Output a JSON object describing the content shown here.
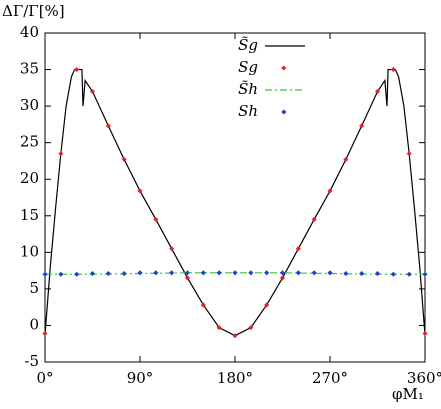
{
  "chart_data": {
    "type": "line",
    "ylabel": "ΔΓ/Γ[%]",
    "xlabel": "φM₁",
    "xlim": [
      0,
      360
    ],
    "ylim": [
      -5,
      40
    ],
    "xticks": [
      {
        "value": 0,
        "label": "0°"
      },
      {
        "value": 90,
        "label": "90°"
      },
      {
        "value": 180,
        "label": "180°"
      },
      {
        "value": 270,
        "label": "270°"
      },
      {
        "value": 360,
        "label": "360°"
      }
    ],
    "yticks": [
      -5,
      0,
      5,
      10,
      15,
      20,
      25,
      30,
      35,
      40
    ],
    "series": [
      {
        "name": "S̃g",
        "kind": "line",
        "color": "#000000",
        "x": [
          0,
          5,
          10,
          15,
          20,
          25,
          28,
          33,
          35,
          36,
          38,
          45,
          60,
          75,
          90,
          105,
          120,
          135,
          150,
          165,
          180,
          195,
          210,
          225,
          240,
          255,
          270,
          285,
          300,
          315,
          322,
          324,
          325,
          327,
          332,
          335,
          340,
          345,
          350,
          355,
          360
        ],
        "values": [
          -1.3,
          8,
          16,
          23.5,
          30,
          34,
          35,
          35,
          35,
          30,
          33.5,
          32,
          27.3,
          22.7,
          18.4,
          14.5,
          10.5,
          6.5,
          2.8,
          -0.3,
          -1.4,
          -0.3,
          2.8,
          6.5,
          10.5,
          14.5,
          18.4,
          22.7,
          27.3,
          32,
          33.5,
          30,
          35,
          35,
          35,
          34,
          30,
          23.5,
          16,
          8,
          -1.3
        ]
      },
      {
        "name": "Sg",
        "kind": "points",
        "color": "#e8202a",
        "x": [
          0,
          15,
          30,
          45,
          60,
          75,
          90,
          105,
          120,
          135,
          150,
          165,
          180,
          195,
          210,
          225,
          240,
          255,
          270,
          285,
          300,
          315,
          330,
          345,
          360
        ],
        "values": [
          -1.1,
          23.5,
          35,
          32,
          27.3,
          22.7,
          18.4,
          14.5,
          10.5,
          6.5,
          2.8,
          -0.3,
          -1.4,
          -0.3,
          2.8,
          6.5,
          10.5,
          14.5,
          18.4,
          22.7,
          27.3,
          32,
          35,
          23.5,
          -1.1
        ]
      },
      {
        "name": "S̃h",
        "kind": "dashdot",
        "color": "#3ec43e",
        "x": [
          0,
          45,
          90,
          135,
          180,
          225,
          270,
          315,
          360
        ],
        "values": [
          7.0,
          7.0,
          7.1,
          7.2,
          7.2,
          7.2,
          7.1,
          7.0,
          7.0
        ]
      },
      {
        "name": "Sh",
        "kind": "points",
        "color": "#1f3fd0",
        "x": [
          0,
          15,
          30,
          45,
          60,
          75,
          90,
          105,
          120,
          135,
          150,
          165,
          180,
          195,
          210,
          225,
          240,
          255,
          270,
          285,
          300,
          315,
          330,
          345,
          360
        ],
        "values": [
          7.0,
          7.0,
          7.0,
          7.1,
          7.1,
          7.1,
          7.2,
          7.2,
          7.2,
          7.2,
          7.2,
          7.2,
          7.2,
          7.2,
          7.2,
          7.2,
          7.2,
          7.2,
          7.2,
          7.1,
          7.1,
          7.1,
          7.0,
          7.0,
          7.0
        ]
      }
    ]
  }
}
